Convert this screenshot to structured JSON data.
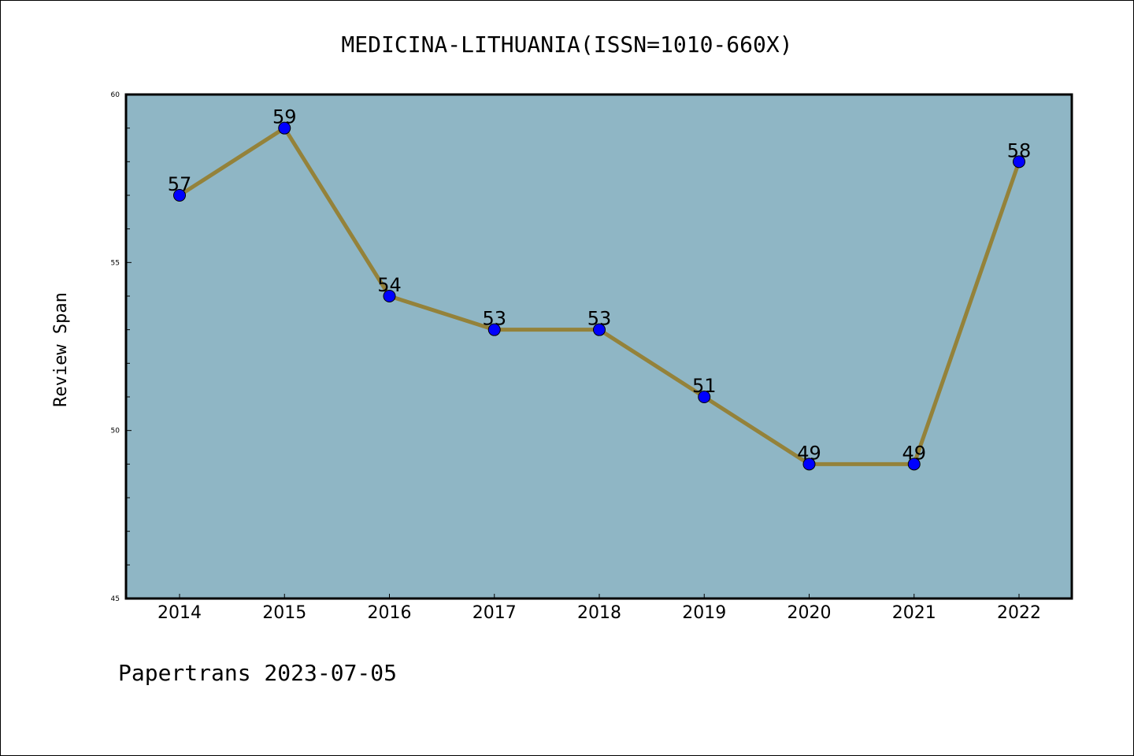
{
  "chart_data": {
    "type": "line",
    "title": "MEDICINA-LITHUANIA(ISSN=1010-660X)",
    "ylabel": "Review Span",
    "xlabel": "",
    "categories": [
      "2014",
      "2015",
      "2016",
      "2017",
      "2018",
      "2019",
      "2020",
      "2021",
      "2022"
    ],
    "series": [
      {
        "values": [
          57,
          59,
          54,
          53,
          53,
          51,
          49,
          49,
          58
        ]
      }
    ],
    "data_labels": [
      "57",
      "59",
      "54",
      "53",
      "53",
      "51",
      "49",
      "49",
      "58"
    ],
    "ylim": [
      45,
      60
    ],
    "yticks": [
      45,
      50,
      55,
      60
    ],
    "ytick_labels": [
      "45",
      "50",
      "55",
      "60"
    ],
    "grid": false,
    "colors": {
      "plot_background": "#8fb6c5",
      "line": "#94823a",
      "marker": "#0000ff"
    },
    "footer": "Papertrans 2023-07-05"
  }
}
